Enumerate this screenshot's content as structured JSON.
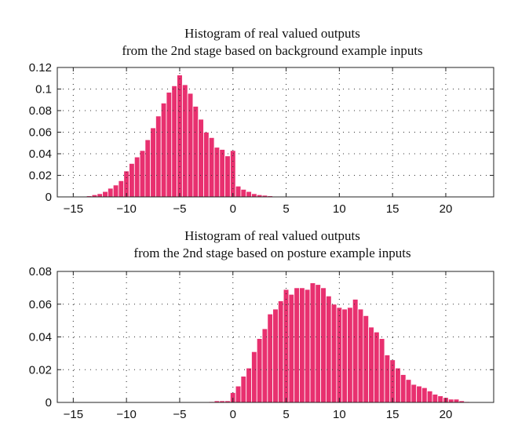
{
  "colors": {
    "bar": "#e8306f",
    "axis": "#222222",
    "grid": "#333333"
  },
  "chart_data": [
    {
      "type": "bar",
      "title_lines": [
        "Histogram of real valued outputs",
        "from the 2nd stage based on background example inputs"
      ],
      "xlabel": "",
      "ylabel": "",
      "xlim": [
        -16.5,
        24.5
      ],
      "ylim": [
        0,
        0.12
      ],
      "xticks": [
        -15,
        -10,
        -5,
        0,
        5,
        10,
        15,
        20
      ],
      "xtick_labels": [
        "−15",
        "−10",
        "−5",
        "0",
        "5",
        "10",
        "15",
        "20"
      ],
      "yticks": [
        0,
        0.02,
        0.04,
        0.06,
        0.08,
        0.1,
        0.12
      ],
      "ytick_labels": [
        "0",
        "0.02",
        "0.04",
        "0.06",
        "0.08",
        "0.1",
        "0.12"
      ],
      "grid": true,
      "bin_width": 0.5,
      "x": [
        -14,
        -13.5,
        -13,
        -12.5,
        -12,
        -11.5,
        -11,
        -10.5,
        -10,
        -9.5,
        -9,
        -8.5,
        -8,
        -7.5,
        -7,
        -6.5,
        -6,
        -5.5,
        -5,
        -4.5,
        -4,
        -3.5,
        -3,
        -2.5,
        -2,
        -1.5,
        -1,
        -0.5,
        0,
        0.5,
        1,
        1.5,
        2,
        2.5,
        3,
        3.5,
        4
      ],
      "values": [
        0.0005,
        0.001,
        0.002,
        0.003,
        0.005,
        0.008,
        0.011,
        0.015,
        0.024,
        0.031,
        0.037,
        0.043,
        0.053,
        0.064,
        0.075,
        0.087,
        0.097,
        0.103,
        0.113,
        0.104,
        0.096,
        0.084,
        0.072,
        0.06,
        0.055,
        0.046,
        0.044,
        0.038,
        0.043,
        0.01,
        0.007,
        0.005,
        0.003,
        0.002,
        0.0015,
        0.001,
        0.0005
      ]
    },
    {
      "type": "bar",
      "title_lines": [
        "Histogram of real valued outputs",
        "from the 2nd stage based on posture example inputs"
      ],
      "xlabel": "",
      "ylabel": "",
      "xlim": [
        -16.5,
        24.5
      ],
      "ylim": [
        0,
        0.08
      ],
      "xticks": [
        -15,
        -10,
        -5,
        0,
        5,
        10,
        15,
        20
      ],
      "xtick_labels": [
        "−15",
        "−10",
        "−5",
        "0",
        "5",
        "10",
        "15",
        "20"
      ],
      "yticks": [
        0,
        0.02,
        0.04,
        0.06,
        0.08
      ],
      "ytick_labels": [
        "0",
        "0.02",
        "0.04",
        "0.06",
        "0.08"
      ],
      "grid": true,
      "bin_width": 0.5,
      "x": [
        -2,
        -1.5,
        -1,
        -0.5,
        0,
        0.5,
        1,
        1.5,
        2,
        2.5,
        3,
        3.5,
        4,
        4.5,
        5,
        5.5,
        6,
        6.5,
        7,
        7.5,
        8,
        8.5,
        9,
        9.5,
        10,
        10.5,
        11,
        11.5,
        12,
        12.5,
        13,
        13.5,
        14,
        14.5,
        15,
        15.5,
        16,
        16.5,
        17,
        17.5,
        18,
        18.5,
        19,
        19.5,
        20,
        20.5,
        21,
        21.5,
        22
      ],
      "values": [
        0.0005,
        0.001,
        0.001,
        0.001,
        0.006,
        0.01,
        0.016,
        0.021,
        0.031,
        0.039,
        0.045,
        0.054,
        0.057,
        0.062,
        0.069,
        0.066,
        0.07,
        0.07,
        0.069,
        0.073,
        0.072,
        0.07,
        0.065,
        0.06,
        0.058,
        0.057,
        0.058,
        0.063,
        0.057,
        0.053,
        0.046,
        0.043,
        0.039,
        0.029,
        0.026,
        0.021,
        0.017,
        0.014,
        0.011,
        0.01,
        0.009,
        0.007,
        0.005,
        0.004,
        0.003,
        0.002,
        0.002,
        0.001,
        0.0005
      ]
    }
  ]
}
